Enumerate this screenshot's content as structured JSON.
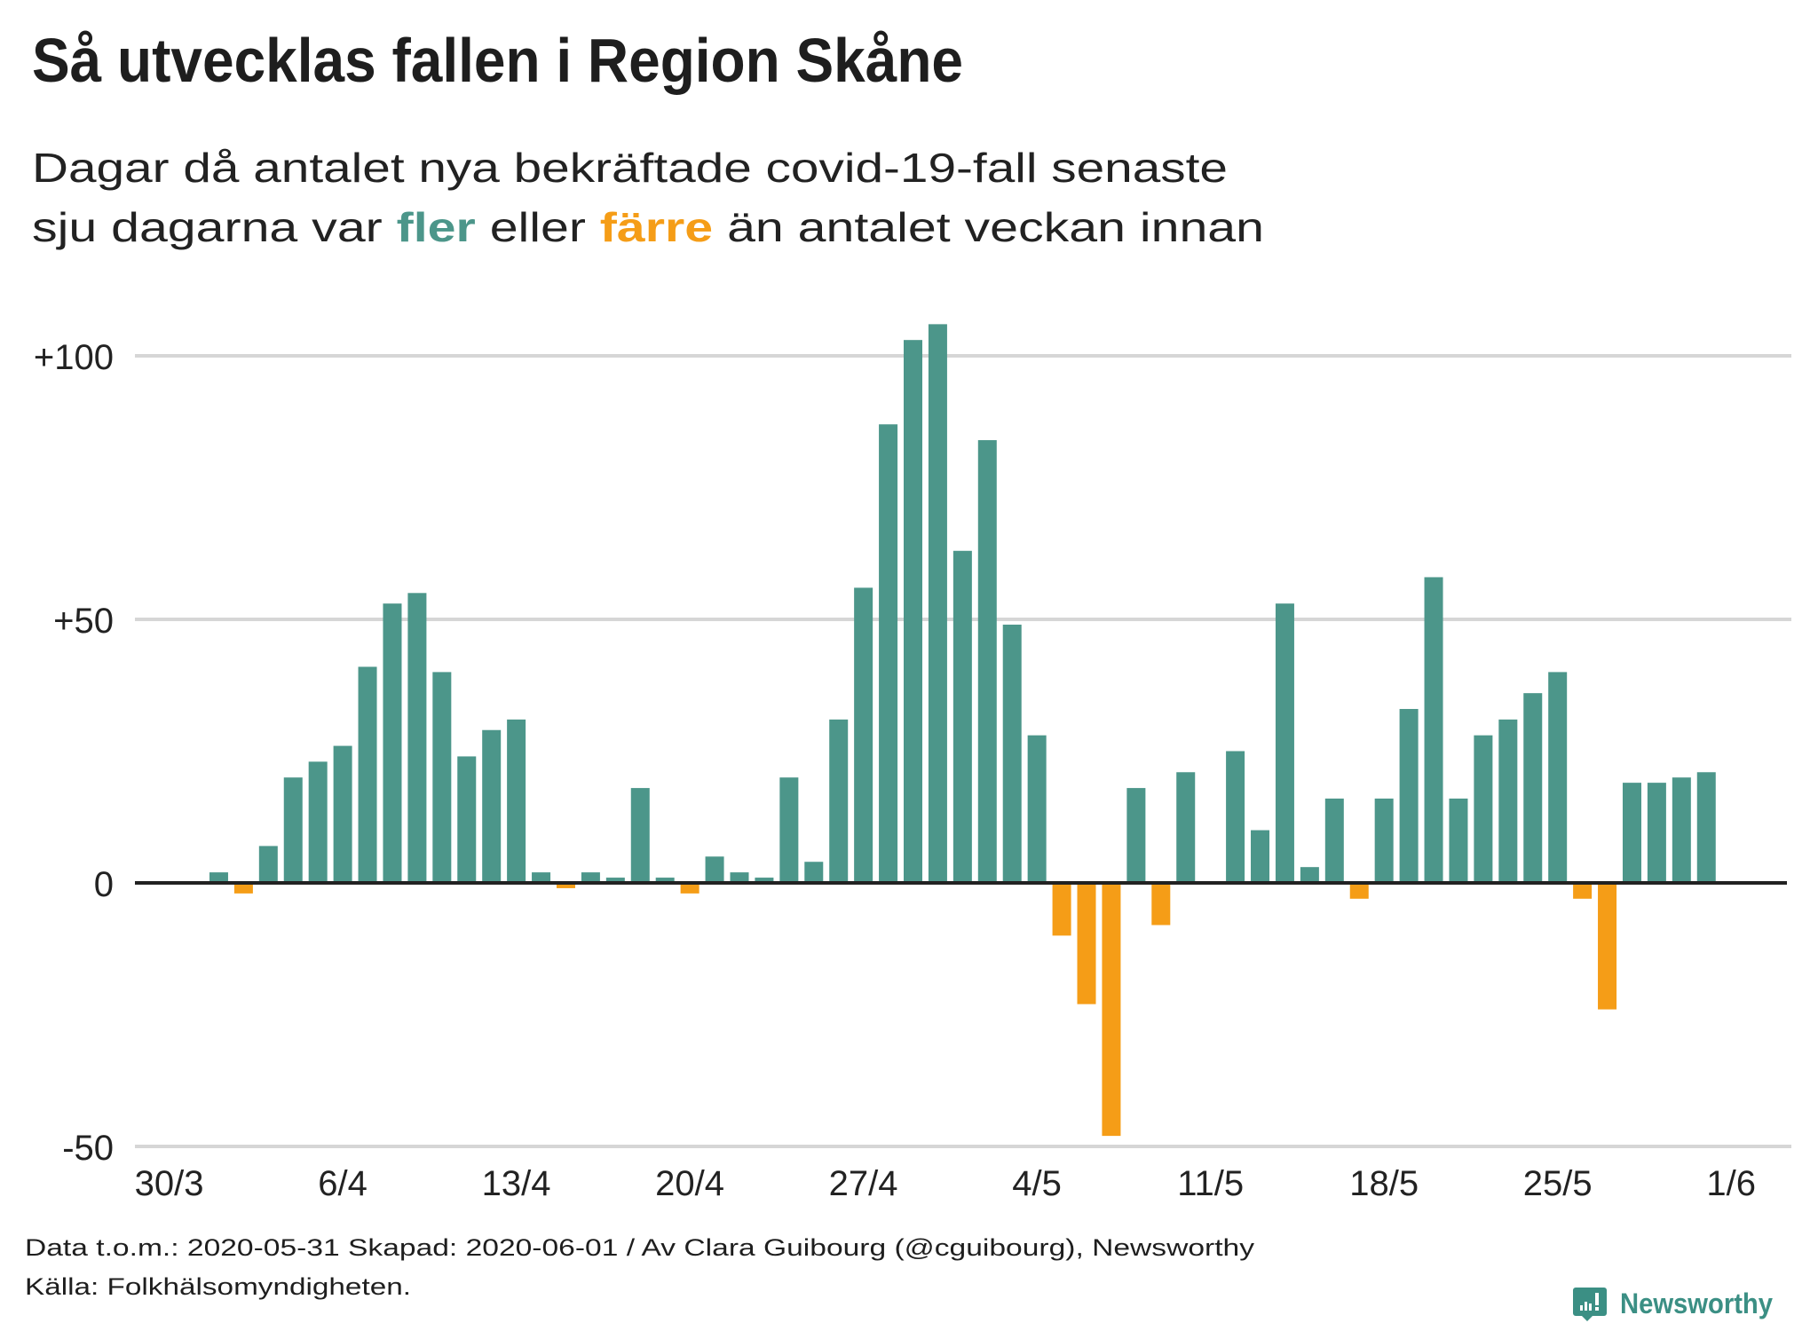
{
  "colors": {
    "more": "#4c968a",
    "fewer": "#f59d17",
    "gridline": "#d6d6d6",
    "zero_line": "#222222",
    "text": "#1e1e1e",
    "brand": "#3b8f84"
  },
  "header": {
    "title": "Så utvecklas fallen i Region Skåne",
    "subtitle_line1": "Dagar då antalet nya bekräftade covid-19-fall senaste",
    "subtitle_line2_part1": "sju dagarna var ",
    "subtitle_highlight_more": "fler",
    "subtitle_line2_part2": " eller ",
    "subtitle_highlight_fewer": "färre",
    "subtitle_line2_part3": " än antalet veckan innan"
  },
  "chart_data": {
    "type": "bar",
    "title": "Så utvecklas fallen i Region Skåne",
    "subtitle": "Dagar då antalet nya bekräftade covid-19-fall senaste sju dagarna var fler eller färre än antalet veckan innan",
    "xlabel": "",
    "ylabel": "",
    "ylim": [
      -50,
      106
    ],
    "grid": true,
    "y_ticks": [
      {
        "value": 100,
        "label": "+100"
      },
      {
        "value": 50,
        "label": "+50"
      },
      {
        "value": 0,
        "label": "0"
      },
      {
        "value": -50,
        "label": "-50"
      }
    ],
    "x_ticks": [
      {
        "index": 0,
        "label": "30/3"
      },
      {
        "index": 7,
        "label": "6/4"
      },
      {
        "index": 14,
        "label": "13/4"
      },
      {
        "index": 21,
        "label": "20/4"
      },
      {
        "index": 28,
        "label": "27/4"
      },
      {
        "index": 35,
        "label": "4/5"
      },
      {
        "index": 42,
        "label": "11/5"
      },
      {
        "index": 49,
        "label": "18/5"
      },
      {
        "index": 56,
        "label": "25/5"
      },
      {
        "index": 63,
        "label": "1/6"
      }
    ],
    "categories": [
      "30/3",
      "31/3",
      "1/4",
      "2/4",
      "3/4",
      "4/4",
      "5/4",
      "6/4",
      "7/4",
      "8/4",
      "9/4",
      "10/4",
      "11/4",
      "12/4",
      "13/4",
      "14/4",
      "15/4",
      "16/4",
      "17/4",
      "18/4",
      "19/4",
      "20/4",
      "21/4",
      "22/4",
      "23/4",
      "24/4",
      "25/4",
      "26/4",
      "27/4",
      "28/4",
      "29/4",
      "30/4",
      "1/5",
      "2/5",
      "3/5",
      "4/5",
      "5/5",
      "6/5",
      "7/5",
      "8/5",
      "9/5",
      "10/5",
      "11/5",
      "12/5",
      "13/5",
      "14/5",
      "15/5",
      "16/5",
      "17/5",
      "18/5",
      "19/5",
      "20/5",
      "21/5",
      "22/5",
      "23/5",
      "24/5",
      "25/5",
      "26/5",
      "27/5",
      "28/5",
      "29/5",
      "30/5",
      "31/5",
      "1/6"
    ],
    "values": [
      0,
      0,
      2,
      -2,
      7,
      20,
      23,
      26,
      41,
      53,
      55,
      40,
      24,
      29,
      31,
      2,
      -1,
      2,
      1,
      18,
      1,
      -2,
      5,
      2,
      1,
      20,
      4,
      31,
      56,
      87,
      103,
      106,
      63,
      84,
      49,
      28,
      -10,
      -23,
      -48,
      18,
      -8,
      21,
      0,
      25,
      10,
      53,
      3,
      16,
      -3,
      16,
      33,
      58,
      16,
      28,
      31,
      36,
      40,
      -3,
      -24,
      19,
      19,
      20,
      21,
      null
    ],
    "legend": [
      {
        "label": "fler",
        "meaning": "positive change",
        "color": "#4c968a"
      },
      {
        "label": "färre",
        "meaning": "negative change",
        "color": "#f59d17"
      }
    ]
  },
  "footer": {
    "line1": "Data t.o.m.: 2020-05-31 Skapad: 2020-06-01 / Av Clara Guibourg (@cguibourg), Newsworthy",
    "line2": "Källa: Folkhälsomyndigheten."
  },
  "brand": {
    "name": "Newsworthy",
    "icon": "newsworthy-logo-icon"
  }
}
